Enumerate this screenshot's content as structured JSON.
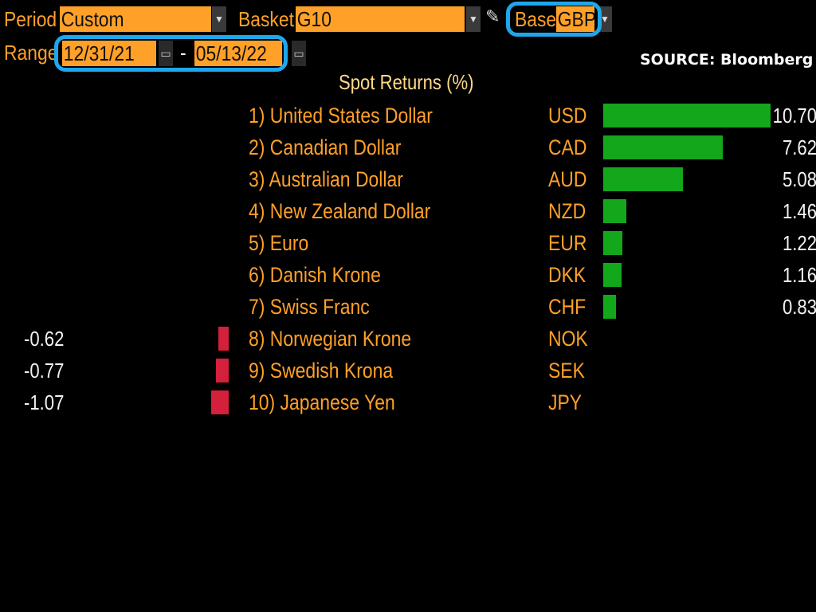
{
  "toolbar": {
    "period_label": "Period",
    "period_value": "Custom",
    "basket_label": "Basket",
    "basket_value": "G10",
    "base_label": "Base",
    "base_value": "GBP",
    "range_label": "Range",
    "range_start": "12/31/21",
    "range_separator": "-",
    "range_end": "05/13/22",
    "dropdown_icon": "chevron-down-icon",
    "calendar_icon": "calendar-icon",
    "edit_icon": "pencil-icon"
  },
  "source_text": "SOURCE: Bloomberg",
  "title": "Spot Returns (%)",
  "colors": {
    "accent": "#ffa028",
    "positive": "#13a71c",
    "negative": "#d4203a",
    "highlight": "#1ea7ec"
  },
  "rows": [
    {
      "name": "1) United States Dollar",
      "code": "USD",
      "value": "10.70",
      "num": 10.7
    },
    {
      "name": "2) Canadian Dollar",
      "code": "CAD",
      "value": "7.62",
      "num": 7.62
    },
    {
      "name": "3) Australian Dollar",
      "code": "AUD",
      "value": "5.08",
      "num": 5.08
    },
    {
      "name": "4) New Zealand Dollar",
      "code": "NZD",
      "value": "1.46",
      "num": 1.46
    },
    {
      "name": "5) Euro",
      "code": "EUR",
      "value": "1.22",
      "num": 1.22
    },
    {
      "name": "6) Danish Krone",
      "code": "DKK",
      "value": "1.16",
      "num": 1.16
    },
    {
      "name": "7) Swiss Franc",
      "code": "CHF",
      "value": "0.83",
      "num": 0.83
    },
    {
      "name": "8) Norwegian Krone",
      "code": "NOK",
      "value": "-0.62",
      "num": -0.62
    },
    {
      "name": "9) Swedish Krona",
      "code": "SEK",
      "value": "-0.77",
      "num": -0.77
    },
    {
      "name": "10) Japanese Yen",
      "code": "JPY",
      "value": "-1.07",
      "num": -1.07
    }
  ]
}
